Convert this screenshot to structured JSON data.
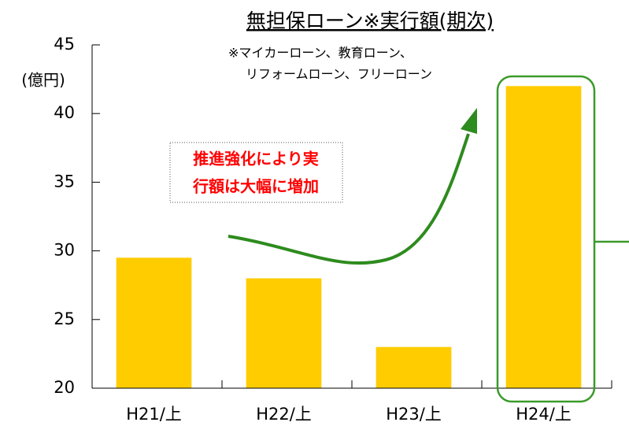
{
  "chart_data": {
    "type": "bar",
    "title": "無担保ローン※実行額(期次)",
    "subtitle": [
      "※マイカーローン、教育ローン、",
      "リフォームローン、フリーローン"
    ],
    "y_label": "(億円)",
    "annotation": [
      "推進強化により実",
      "行額は大幅に増加"
    ],
    "categories": [
      "H21/上",
      "H22/上",
      "H23/上",
      "H24/上"
    ],
    "values": [
      29.5,
      28,
      23,
      42
    ],
    "color": "#ffcc00",
    "ylim": [
      20,
      45
    ],
    "yticks": [
      20,
      25,
      30,
      35,
      40,
      45
    ],
    "grid": false
  }
}
